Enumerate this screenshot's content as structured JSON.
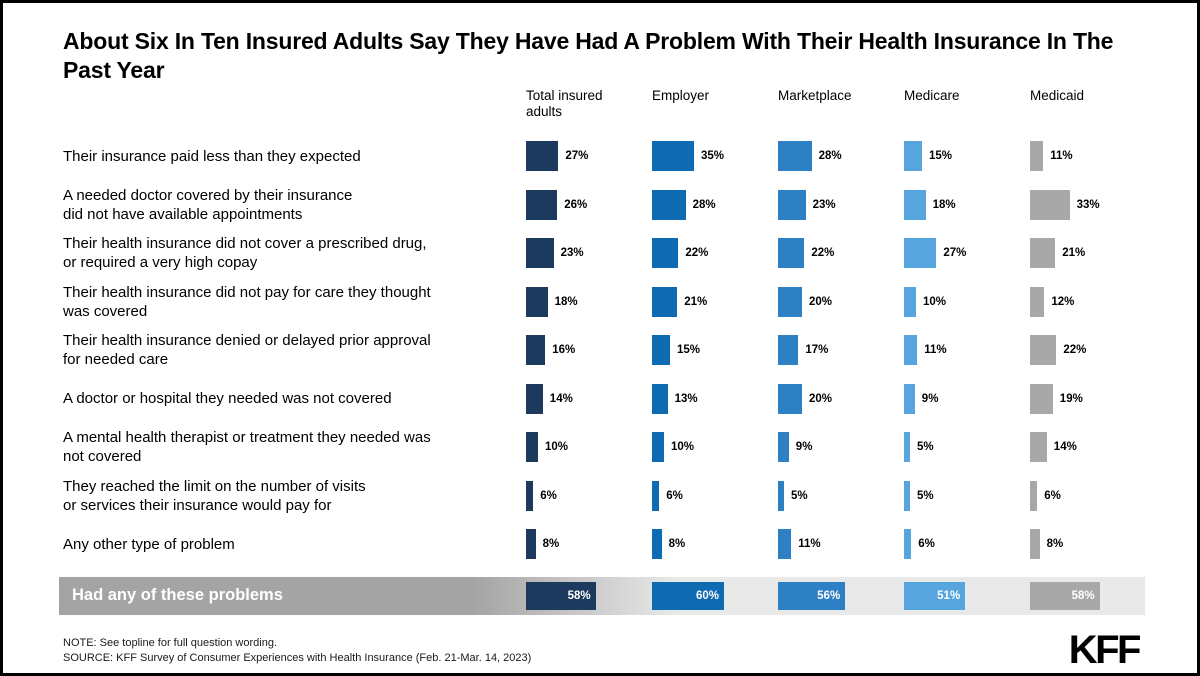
{
  "title": "About Six In Ten Insured Adults Say They Have Had A Problem With Their Health Insurance In The Past Year",
  "colors": {
    "total_insured": "#1b3a5e",
    "employer": "#0e6ab1",
    "marketplace": "#2e80c4",
    "medicare": "#57a5de",
    "medicaid": "#a8a8a8",
    "band_gray_left": "#a4a4a4",
    "band_gray_right": "#e9e9e9",
    "band_value_text": "#ffffff"
  },
  "chart_data": {
    "type": "bar",
    "orientation": "horizontal",
    "unit": "%",
    "xlim": [
      0,
      100
    ],
    "grid": false,
    "legend_position": "column-headers-top",
    "categories": [
      [
        "Their insurance paid less than they expected"
      ],
      [
        "A needed doctor covered by their insurance",
        "did not have available appointments"
      ],
      [
        "Their health insurance did not cover a prescribed drug,",
        "or required a very high copay"
      ],
      [
        "Their health insurance did not pay for care they thought",
        "was covered"
      ],
      [
        "Their health insurance denied or delayed prior approval",
        "for needed care"
      ],
      [
        "A doctor or hospital they needed was not covered"
      ],
      [
        "A mental health therapist or treatment they needed was",
        "not covered"
      ],
      [
        "They reached the limit on the number of visits",
        "or services their insurance would pay for"
      ],
      [
        "Any other type of problem"
      ]
    ],
    "series": [
      {
        "name": "Total insured adults",
        "header_lines": [
          "Total insured",
          "adults"
        ],
        "color": "#1b3a5e",
        "values": [
          27,
          26,
          23,
          18,
          16,
          14,
          10,
          6,
          8
        ],
        "total": 58
      },
      {
        "name": "Employer",
        "header_lines": [
          "Employer"
        ],
        "color": "#0e6ab1",
        "values": [
          35,
          28,
          22,
          21,
          15,
          13,
          10,
          6,
          8
        ],
        "total": 60
      },
      {
        "name": "Marketplace",
        "header_lines": [
          "Marketplace"
        ],
        "color": "#2e80c4",
        "values": [
          28,
          23,
          22,
          20,
          17,
          20,
          9,
          5,
          11
        ],
        "total": 56
      },
      {
        "name": "Medicare",
        "header_lines": [
          "Medicare"
        ],
        "color": "#57a5de",
        "values": [
          15,
          18,
          27,
          10,
          11,
          9,
          5,
          5,
          6
        ],
        "total": 51
      },
      {
        "name": "Medicaid",
        "header_lines": [
          "Medicaid"
        ],
        "color": "#a8a8a8",
        "values": [
          11,
          33,
          21,
          12,
          22,
          19,
          14,
          6,
          8
        ],
        "total": 58
      }
    ],
    "total_row": {
      "label": "Had any of these problems",
      "values": [
        58,
        60,
        56,
        51,
        58
      ]
    }
  },
  "footer": {
    "note": "NOTE: See topline for full question wording.",
    "source": "SOURCE: KFF Survey of Consumer Experiences with Health Insurance (Feb. 21-Mar. 14, 2023)",
    "logo": "KFF"
  }
}
